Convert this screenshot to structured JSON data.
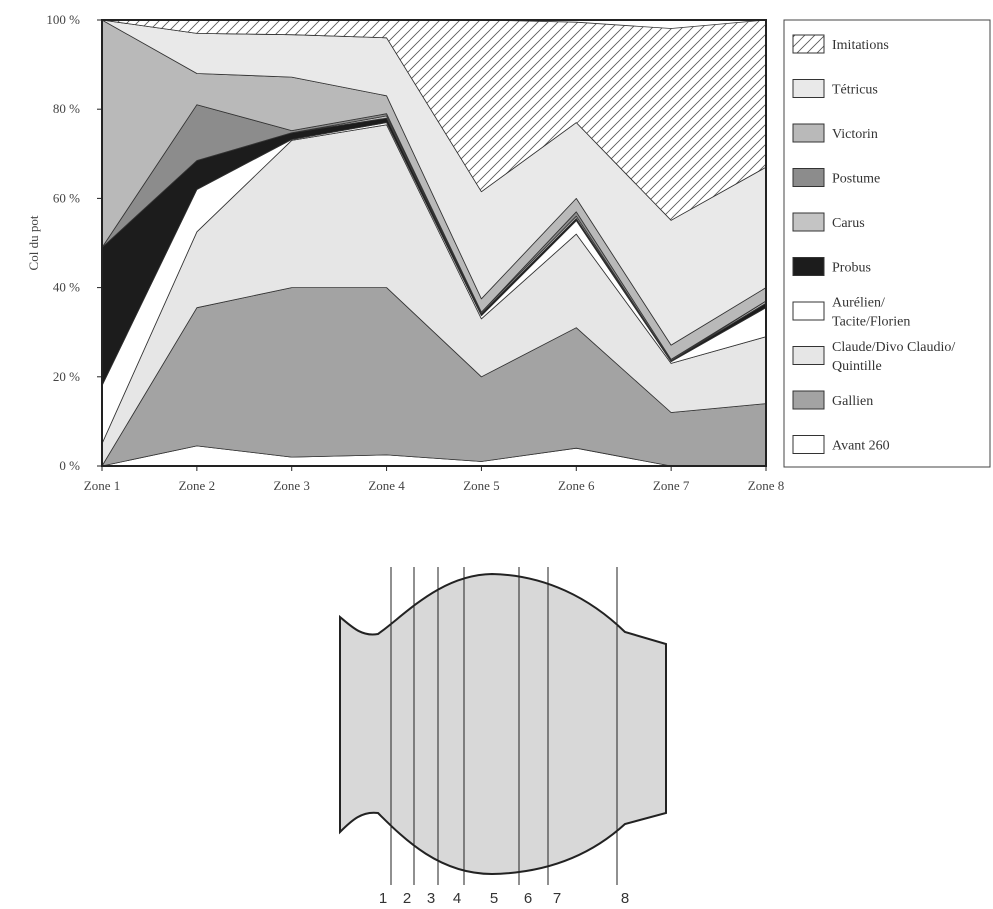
{
  "colors": {
    "imitations": "#ffffff",
    "tetricus": "#e9e9e9",
    "victorin": "#b9b9b9",
    "postume": "#8c8c8c",
    "carus": "#c4c4c4",
    "probus": "#1c1c1c",
    "aurelien": "#ffffff",
    "claude": "#e6e6e6",
    "gallien": "#a3a3a3",
    "avant260": "#ffffff",
    "pot_fill": "#d8d8d8",
    "hatch": "#555555"
  },
  "chart_data": {
    "type": "area",
    "stacked": true,
    "categories": [
      "Zone 1",
      "Zone 2",
      "Zone 3",
      "Zone 4",
      "Zone 5",
      "Zone 6",
      "Zone 7",
      "Zone 8"
    ],
    "ylabel": "Col du pot",
    "ylim": [
      0,
      100
    ],
    "yticks": [
      0,
      20,
      40,
      60,
      80,
      100
    ],
    "ytick_labels": [
      "0 %",
      "20 %",
      "40 %",
      "60 %",
      "80 %",
      "100 %"
    ],
    "legend_position": "right",
    "series": [
      {
        "key": "avant260",
        "name": "Avant 260",
        "pattern": "solid",
        "values": [
          0,
          4.5,
          2,
          2.5,
          1,
          4,
          0,
          0
        ]
      },
      {
        "key": "gallien",
        "name": "Gallien",
        "pattern": "solid",
        "values": [
          0,
          31,
          38,
          37.5,
          19,
          27,
          12,
          14
        ]
      },
      {
        "key": "claude",
        "name": [
          "Claude/Divo Claudio/",
          "Quintille"
        ],
        "pattern": "solid",
        "values": [
          5,
          17,
          33,
          36.5,
          13,
          21,
          11,
          15
        ]
      },
      {
        "key": "aurelien",
        "name": [
          "Aurélien/",
          "Tacite/Florien"
        ],
        "pattern": "solid",
        "values": [
          13,
          9.5,
          0.2,
          0.5,
          0.7,
          3,
          0.4,
          6.5
        ]
      },
      {
        "key": "probus",
        "name": "Probus",
        "pattern": "solid",
        "values": [
          31,
          6.5,
          1.5,
          1,
          0.5,
          0.5,
          0.2,
          1
        ]
      },
      {
        "key": "carus",
        "name": "Carus",
        "pattern": "solid",
        "values": [
          0,
          0,
          0,
          0.5,
          0.3,
          0.5,
          0,
          0.5
        ]
      },
      {
        "key": "postume",
        "name": "Postume",
        "pattern": "solid",
        "values": [
          0,
          12.5,
          0.5,
          0.5,
          0,
          1,
          0.3,
          0
        ]
      },
      {
        "key": "victorin",
        "name": "Victorin",
        "pattern": "solid",
        "values": [
          51,
          7,
          12,
          4,
          3,
          3,
          3.2,
          3
        ]
      },
      {
        "key": "tetricus",
        "name": "Tétricus",
        "pattern": "solid",
        "values": [
          0,
          9,
          9.5,
          13,
          24,
          17,
          28,
          27
        ]
      },
      {
        "key": "imitations",
        "name": "Imitations",
        "pattern": "hatch",
        "values": [
          0,
          3,
          3.3,
          4,
          38.5,
          22.5,
          43,
          33
        ]
      }
    ]
  },
  "pot": {
    "zone_numbers": [
      "1",
      "2",
      "3",
      "4",
      "5",
      "6",
      "7",
      "8"
    ]
  }
}
